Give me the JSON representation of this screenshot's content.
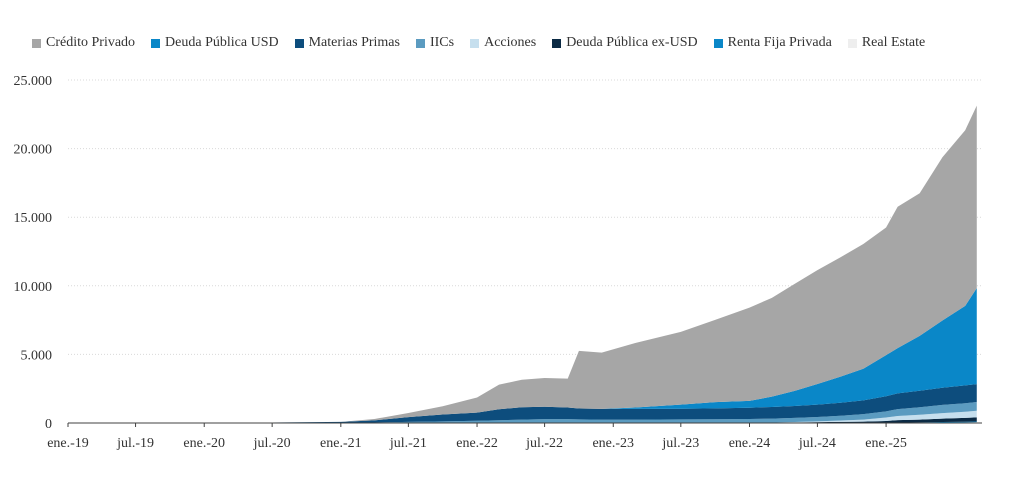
{
  "chart_data": {
    "type": "area",
    "stacked": true,
    "title": "",
    "xlabel": "",
    "ylabel": "",
    "ylim": [
      0,
      25000
    ],
    "yticks": [
      "0",
      "5.000",
      "10.000",
      "15.000",
      "20.000",
      "25.000"
    ],
    "ytick_values": [
      0,
      5000,
      10000,
      15000,
      20000,
      25000
    ],
    "xticks": [
      "ene.-19",
      "jul.-19",
      "ene.-20",
      "jul.-20",
      "ene.-21",
      "jul.-21",
      "ene.-22",
      "jul.-22",
      "ene.-23",
      "jul.-23",
      "ene.-24",
      "jul.-24",
      "ene.-25"
    ],
    "grid": "horizontal",
    "legend_position": "top",
    "x": [
      "2019-01",
      "2019-07",
      "2020-01",
      "2020-07",
      "2021-01",
      "2021-04",
      "2021-07",
      "2021-10",
      "2022-01",
      "2022-03",
      "2022-05",
      "2022-07",
      "2022-09",
      "2022-10",
      "2022-12",
      "2023-03",
      "2023-07",
      "2023-10",
      "2024-01",
      "2024-03",
      "2024-05",
      "2024-07",
      "2024-09",
      "2024-11",
      "2025-01",
      "2025-02",
      "2025-04",
      "2025-06",
      "2025-08",
      "2025-09"
    ],
    "series": [
      {
        "name": "Real Estate",
        "color": "#eeeeee",
        "values": [
          0,
          0,
          0,
          0,
          0,
          0,
          0,
          0,
          0,
          0,
          0,
          0,
          0,
          0,
          0,
          0,
          0,
          0,
          0,
          0,
          0,
          0,
          0,
          0,
          0,
          20,
          30,
          40,
          50,
          60
        ]
      },
      {
        "name": "Renta Fija Privada",
        "color": "#0a87c8",
        "values": [
          0,
          0,
          0,
          0,
          0,
          0,
          0,
          0,
          0,
          0,
          0,
          0,
          0,
          0,
          0,
          0,
          0,
          0,
          0,
          0,
          0,
          0,
          0,
          0,
          0,
          10,
          20,
          30,
          40,
          50
        ]
      },
      {
        "name": "Deuda Pública ex-USD",
        "color": "#0b2a44",
        "values": [
          0,
          0,
          0,
          0,
          0,
          0,
          0,
          0,
          0,
          0,
          0,
          0,
          0,
          0,
          0,
          0,
          0,
          0,
          10,
          20,
          40,
          60,
          80,
          100,
          150,
          180,
          200,
          250,
          280,
          300
        ]
      },
      {
        "name": "Acciones",
        "color": "#c6dfee",
        "values": [
          0,
          0,
          0,
          0,
          0,
          0,
          0,
          0,
          0,
          0,
          0,
          0,
          0,
          0,
          0,
          0,
          0,
          0,
          0,
          10,
          30,
          60,
          100,
          150,
          250,
          300,
          350,
          400,
          450,
          480
        ]
      },
      {
        "name": "IICs",
        "color": "#5b9bc0",
        "values": [
          0,
          0,
          0,
          0,
          20,
          40,
          80,
          120,
          160,
          200,
          250,
          280,
          280,
          260,
          250,
          250,
          260,
          270,
          280,
          290,
          300,
          320,
          350,
          400,
          450,
          500,
          550,
          600,
          620,
          640
        ]
      },
      {
        "name": "Materias Primas",
        "color": "#0d4d7d",
        "values": [
          0,
          0,
          30,
          40,
          60,
          150,
          350,
          500,
          600,
          800,
          900,
          900,
          850,
          800,
          780,
          780,
          780,
          800,
          820,
          850,
          870,
          900,
          950,
          1000,
          1100,
          1150,
          1200,
          1250,
          1300,
          1300
        ]
      },
      {
        "name": "Deuda Pública USD",
        "color": "#0a87c8",
        "values": [
          0,
          0,
          0,
          0,
          0,
          0,
          0,
          0,
          0,
          0,
          0,
          0,
          0,
          0,
          0,
          100,
          300,
          450,
          500,
          750,
          1100,
          1500,
          1900,
          2300,
          3000,
          3300,
          4000,
          4900,
          5800,
          7000
        ]
      },
      {
        "name": "Crédito Privado",
        "color": "#a6a6a6",
        "values": [
          0,
          0,
          0,
          0,
          0,
          100,
          300,
          600,
          1100,
          1800,
          2000,
          2100,
          2100,
          4200,
          4100,
          4700,
          5300,
          6000,
          6800,
          7200,
          7800,
          8300,
          8700,
          9100,
          9300,
          10300,
          10400,
          11900,
          12800,
          13300
        ]
      }
    ]
  },
  "legend": [
    {
      "label": "Crédito Privado",
      "color": "#a6a6a6"
    },
    {
      "label": "Deuda Pública USD",
      "color": "#0a87c8"
    },
    {
      "label": "Materias Primas",
      "color": "#0d4d7d"
    },
    {
      "label": "IICs",
      "color": "#5b9bc0"
    },
    {
      "label": "Acciones",
      "color": "#c6dfee"
    },
    {
      "label": "Deuda Pública ex-USD",
      "color": "#0b2a44"
    },
    {
      "label": "Renta Fija Privada",
      "color": "#0a87c8"
    },
    {
      "label": "Real Estate",
      "color": "#eeeeee"
    }
  ]
}
